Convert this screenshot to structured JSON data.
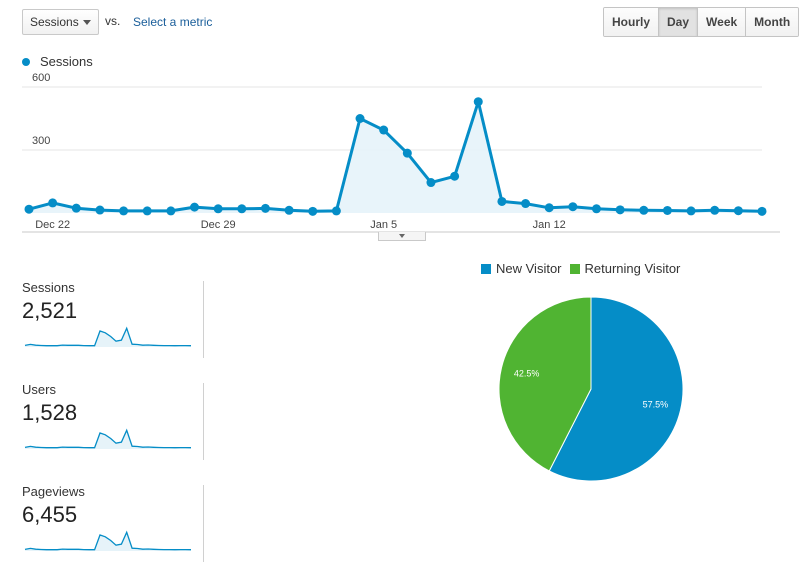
{
  "toolbar": {
    "metric_select": "Sessions",
    "vs_label": "vs.",
    "select_metric_link": "Select a metric",
    "granularity": [
      "Hourly",
      "Day",
      "Week",
      "Month"
    ],
    "granularity_active": "Day"
  },
  "colors": {
    "primary": "#058dc7",
    "secondary": "#50b432",
    "area_fill": "#e6f3f9"
  },
  "icons": {
    "select_caret": "caret-down-icon",
    "expander": "caret-down-icon"
  },
  "chart_data": [
    {
      "type": "line",
      "series": [
        {
          "name": "Sessions",
          "values": [
            18,
            48,
            23,
            14,
            10,
            10,
            10,
            28,
            20,
            20,
            22,
            13,
            8,
            10,
            450,
            395,
            285,
            145,
            175,
            530,
            55,
            45,
            25,
            30,
            20,
            15,
            13,
            12,
            10,
            13,
            11,
            8
          ]
        }
      ],
      "x_tick_labels": [
        "Dec 22",
        "Dec 29",
        "Jan 5",
        "Jan 12"
      ],
      "x_tick_indices": [
        1,
        8,
        15,
        22
      ],
      "y_tick_labels": [
        "600",
        "300"
      ],
      "ylim": [
        0,
        600
      ],
      "grid": true,
      "legend": "top-left"
    },
    {
      "type": "pie",
      "labels": [
        "New Visitor",
        "Returning Visitor"
      ],
      "values": [
        57.5,
        42.5
      ],
      "value_labels": [
        "57.5%",
        "42.5%"
      ],
      "colors": [
        "#058dc7",
        "#50b432"
      ],
      "legend": "top"
    }
  ],
  "kpis": [
    {
      "label": "Sessions",
      "value": "2,521"
    },
    {
      "label": "Users",
      "value": "1,528"
    },
    {
      "label": "Pageviews",
      "value": "6,455"
    }
  ]
}
